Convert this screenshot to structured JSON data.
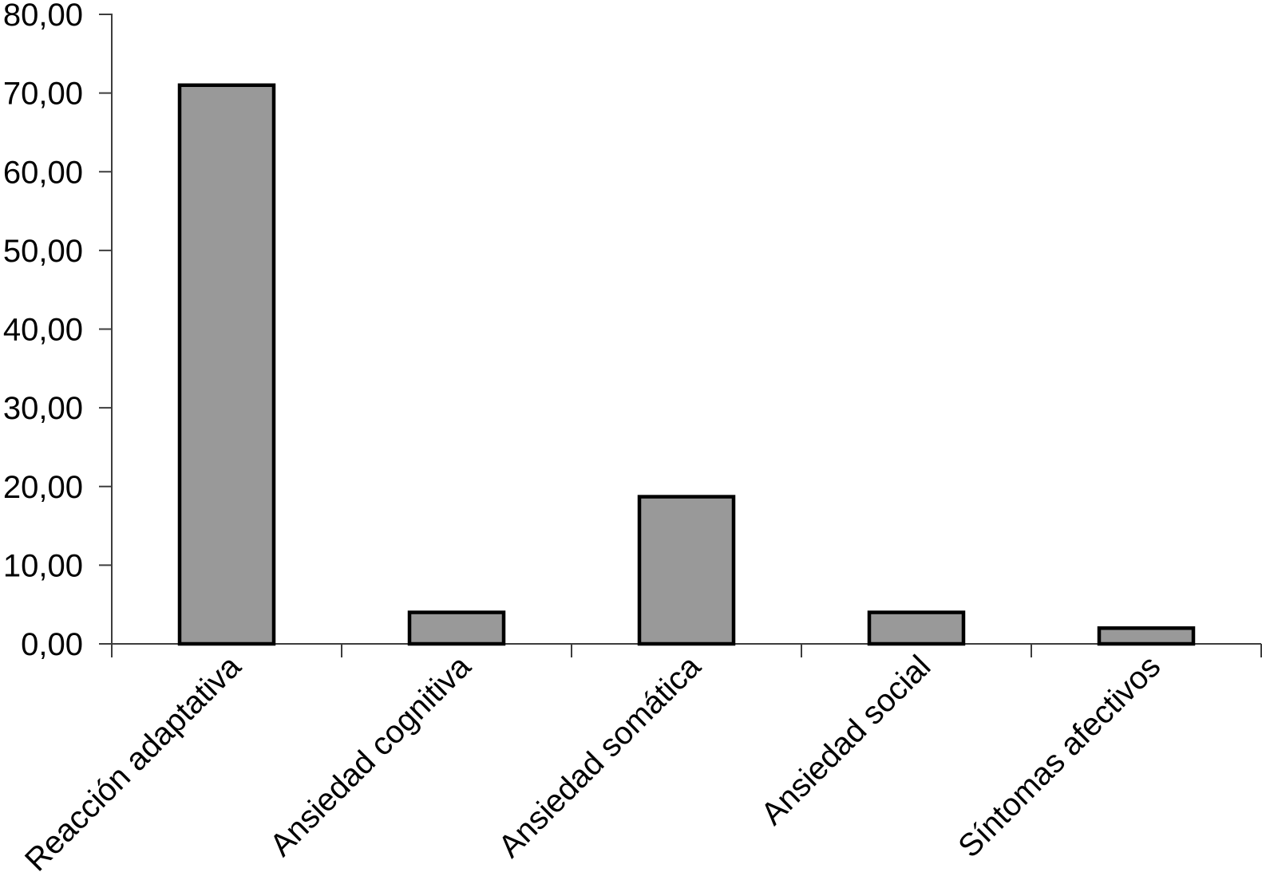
{
  "chart_data": {
    "type": "bar",
    "title": "",
    "xlabel": "",
    "ylabel": "",
    "categories": [
      "Reacción adaptativa",
      "Ansiedad cognitiva",
      "Ansiedad somática",
      "Ansiedad social",
      "Síntomas afectivos"
    ],
    "values": [
      71,
      4,
      18.7,
      4,
      2
    ],
    "y_ticks": [
      0,
      10,
      20,
      30,
      40,
      50,
      60,
      70,
      80
    ],
    "y_tick_labels": [
      "0,00",
      "10,00",
      "20,00",
      "30,00",
      "40,00",
      "50,00",
      "60,00",
      "70,00",
      "80,00"
    ],
    "ylim": [
      0,
      80
    ],
    "grid": false,
    "legend": null,
    "bar_fill_color": "#999999",
    "bar_stroke_color": "#000000",
    "axis_color": "#3d3d3d",
    "text_color": "#000000",
    "x_label_rotation_deg": -45
  }
}
